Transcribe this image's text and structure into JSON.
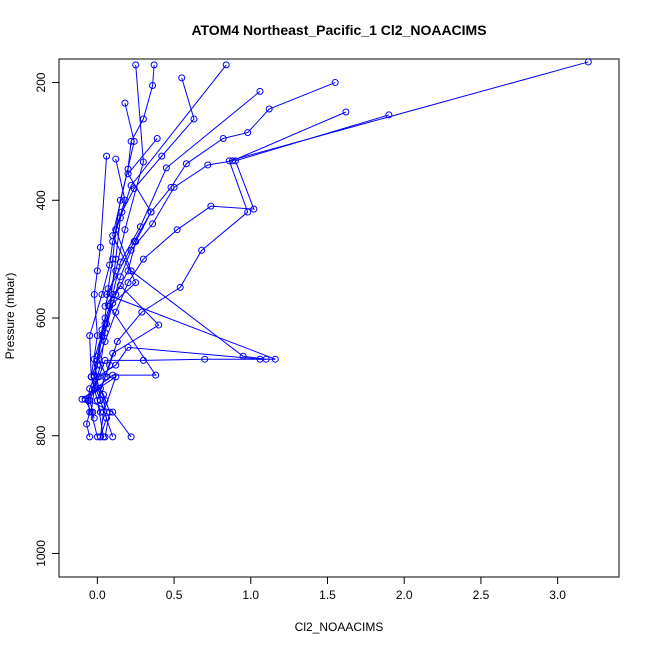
{
  "chart_data": {
    "type": "line",
    "title": "ATOM4 Northeast_Pacific_1 Cl2_NOAACIMS",
    "xlabel": "Cl2_NOAACIMS",
    "ylabel": "Pressure (mbar)",
    "xlim": [
      -0.25,
      3.4
    ],
    "ylim": [
      1040,
      160
    ],
    "y_reversed": true,
    "grid": false,
    "legend": "none",
    "series_color": "#0000ff",
    "x_ticks": [
      0.0,
      0.5,
      1.0,
      1.5,
      2.0,
      2.5,
      3.0
    ],
    "x_tick_labels": [
      "0.0",
      "0.5",
      "1.0",
      "1.5",
      "2.0",
      "2.5",
      "3.0"
    ],
    "y_ticks": [
      200,
      400,
      600,
      800,
      1000
    ],
    "y_tick_labels": [
      "200",
      "400",
      "600",
      "800",
      "1000"
    ],
    "series": [
      {
        "x": [
          0.37,
          0.36,
          0.3,
          0.22,
          0.2,
          0.15,
          0.12,
          0.1,
          0.07,
          0.05,
          0.03,
          0.0,
          -0.02,
          -0.05,
          -0.06,
          -0.05,
          -0.07,
          -0.05
        ],
        "y": [
          170,
          205,
          262,
          300,
          347,
          400,
          450,
          500,
          550,
          600,
          630,
          680,
          700,
          720,
          740,
          760,
          780,
          802
        ]
      },
      {
        "x": [
          0.55,
          0.63,
          0.42,
          0.24,
          0.16,
          0.1,
          0.08,
          0.03,
          -0.05,
          -0.04,
          0.02,
          0.06,
          0.02
        ],
        "y": [
          192,
          262,
          325,
          380,
          420,
          470,
          510,
          560,
          630,
          700,
          740,
          770,
          802
        ]
      },
      {
        "x": [
          1.55,
          1.12,
          0.98,
          0.82,
          0.58,
          0.48,
          0.35,
          0.25,
          0.2,
          0.12,
          0.05,
          -0.02,
          0.02,
          0.1
        ],
        "y": [
          200,
          245,
          285,
          295,
          338,
          378,
          420,
          470,
          520,
          560,
          610,
          670,
          740,
          802
        ]
      },
      {
        "x": [
          1.62,
          0.88,
          0.72,
          0.5,
          0.36,
          0.22,
          0.15,
          0.1,
          0.05,
          0.02,
          -0.02,
          -0.04,
          0.0
        ],
        "y": [
          250,
          333,
          340,
          378,
          440,
          485,
          530,
          575,
          625,
          680,
          720,
          760,
          802
        ]
      },
      {
        "x": [
          1.9,
          0.9,
          1.02,
          0.74,
          0.52,
          0.3,
          0.2,
          0.12,
          0.05,
          -0.04,
          0.02
        ],
        "y": [
          255,
          333,
          415,
          410,
          450,
          500,
          540,
          590,
          640,
          700,
          760
        ]
      },
      {
        "x": [
          3.2,
          0.86,
          0.98,
          0.68,
          0.54,
          0.29,
          0.13,
          0.08,
          0.02,
          -0.08,
          -0.02
        ],
        "y": [
          165,
          333,
          420,
          485,
          548,
          590,
          640,
          680,
          720,
          738,
          770
        ]
      },
      {
        "x": [
          0.06,
          0.02,
          0.0,
          -0.02,
          0.0,
          -0.04,
          0.04,
          0.08,
          0.05
        ],
        "y": [
          325,
          480,
          520,
          560,
          630,
          700,
          730,
          760,
          802
        ]
      },
      {
        "x": [
          0.25,
          0.3,
          0.18,
          0.12,
          0.05,
          0.15,
          0.4,
          0.1,
          0.05,
          0.0,
          0.04
        ],
        "y": [
          170,
          335,
          450,
          520,
          580,
          545,
          612,
          660,
          700,
          740,
          802
        ]
      },
      {
        "x": [
          0.12,
          0.18,
          0.12,
          0.22,
          0.95,
          1.1,
          0.7,
          0.3,
          0.05,
          0.01,
          -0.05,
          -0.03
        ],
        "y": [
          330,
          400,
          450,
          520,
          665,
          670,
          670,
          672,
          672,
          700,
          740,
          760
        ]
      },
      {
        "x": [
          0.39,
          0.2,
          0.35,
          0.24,
          0.06,
          1.16,
          1.06,
          0.2,
          0.12,
          0.0,
          -0.06,
          0.1,
          0.22
        ],
        "y": [
          295,
          355,
          420,
          470,
          560,
          670,
          670,
          650,
          680,
          700,
          740,
          760,
          802
        ]
      },
      {
        "x": [
          0.18,
          0.24,
          0.1,
          0.25,
          0.08,
          0.38,
          0.1,
          -0.1,
          0.12,
          0.04
        ],
        "y": [
          235,
          300,
          460,
          540,
          580,
          697,
          697,
          738,
          700,
          760
        ]
      },
      {
        "x": [
          0.84,
          0.22,
          0.15,
          0.12,
          0.08,
          0.03,
          -0.02,
          0.05,
          0.02
        ],
        "y": [
          170,
          375,
          430,
          500,
          580,
          620,
          698,
          740,
          802
        ]
      },
      {
        "x": [
          1.06,
          0.45,
          0.28,
          0.15,
          0.1,
          0.06,
          0.0,
          0.06
        ],
        "y": [
          215,
          345,
          445,
          505,
          560,
          610,
          665,
          700
        ]
      }
    ]
  }
}
